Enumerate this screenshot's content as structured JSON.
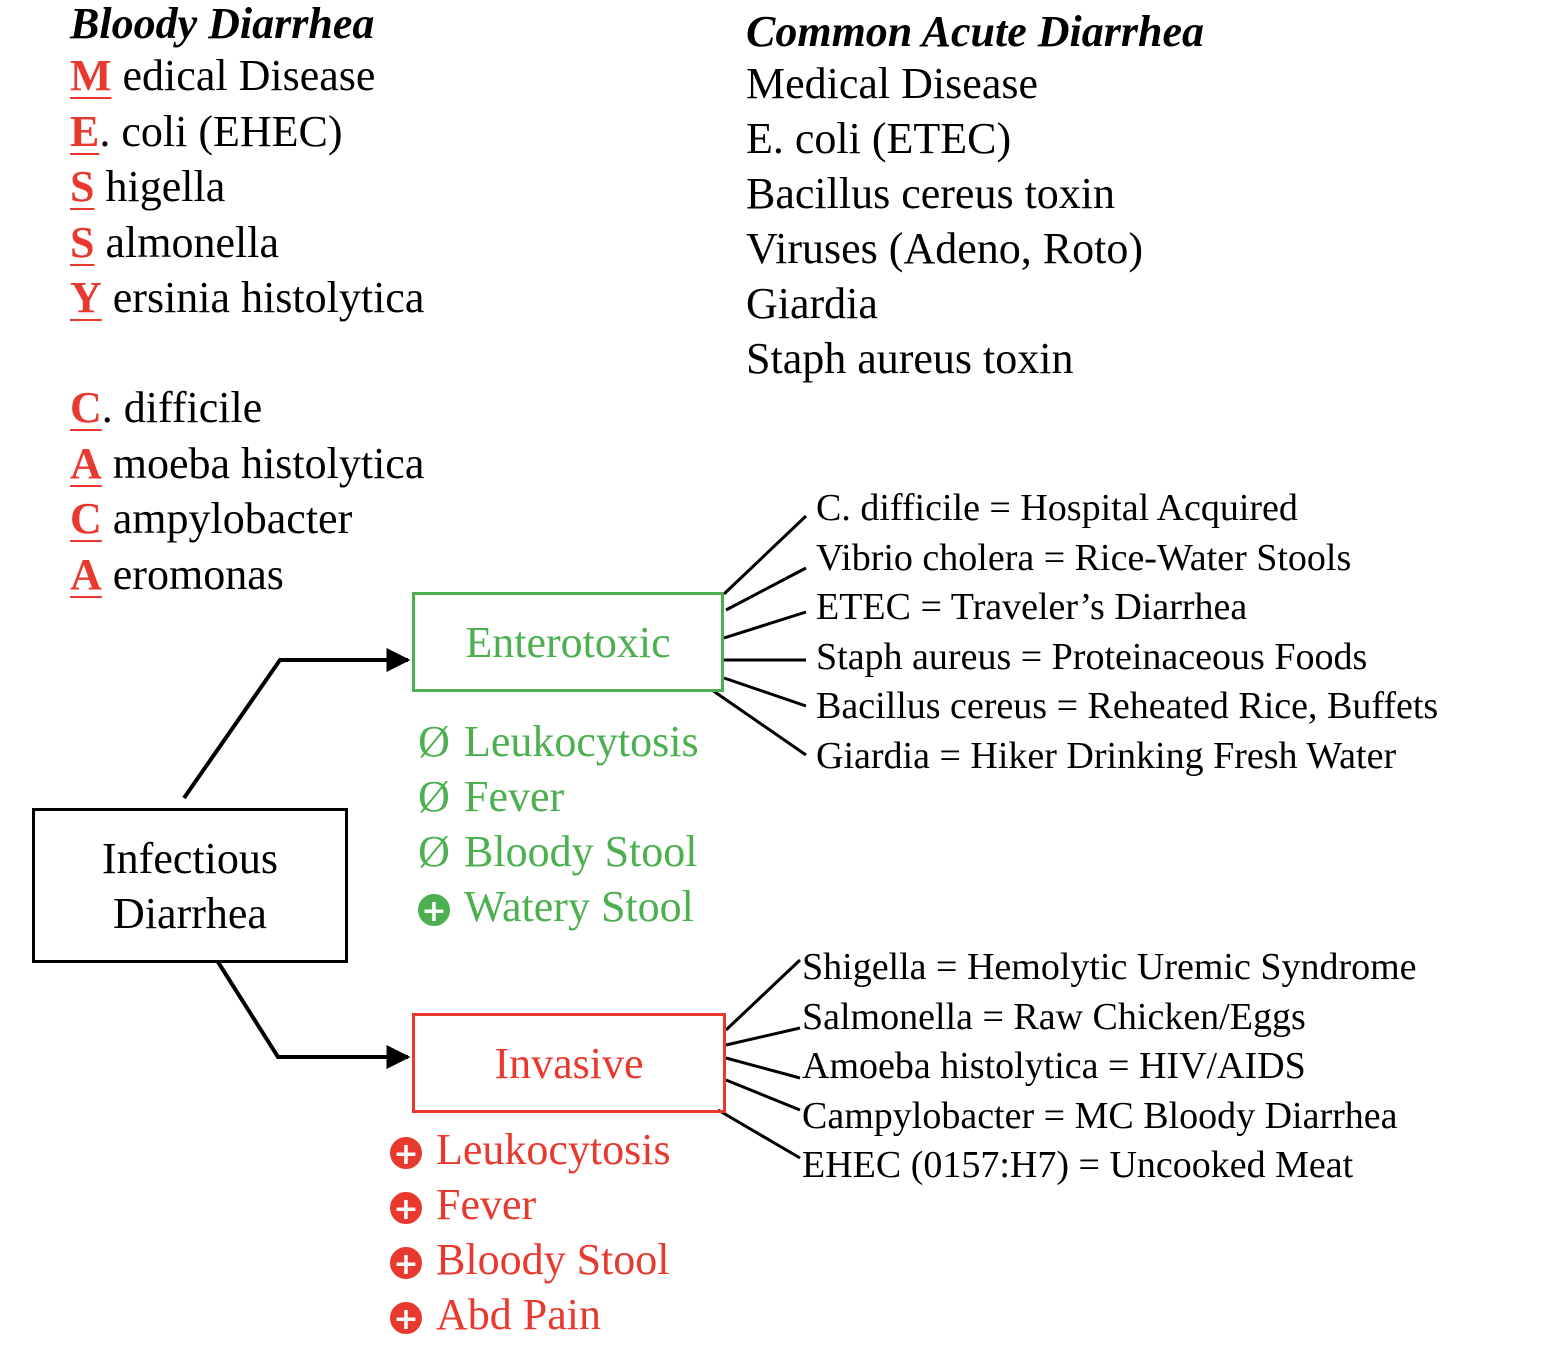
{
  "bloody": {
    "heading": "Bloody Diarrhea",
    "mnemonic_1": [
      {
        "letter": "M",
        "rest": " edical Disease"
      },
      {
        "letter": "E",
        "rest": ". coli (EHEC)"
      },
      {
        "letter": "S",
        "rest": " higella"
      },
      {
        "letter": "S",
        "rest": " almonella"
      },
      {
        "letter": "Y",
        "rest": " ersinia histolytica"
      }
    ],
    "mnemonic_2": [
      {
        "letter": "C",
        "rest": ". difficile"
      },
      {
        "letter": "A",
        "rest": " moeba histolytica"
      },
      {
        "letter": "C",
        "rest": " ampylobacter"
      },
      {
        "letter": "A",
        "rest": " eromonas"
      }
    ]
  },
  "common": {
    "heading": "Common Acute Diarrhea",
    "items": [
      "Medical Disease",
      "E. coli (ETEC)",
      "Bacillus cereus toxin",
      "Viruses (Adeno, Roto)",
      "Giardia",
      "Staph aureus toxin"
    ]
  },
  "root": {
    "line1": "Infectious",
    "line2": "Diarrhea"
  },
  "enterotoxic": {
    "label": "Enterotoxic",
    "color": "#4caf50",
    "features": [
      {
        "symbol": "Ø",
        "text": "Leukocytosis"
      },
      {
        "symbol": "Ø",
        "text": "Fever"
      },
      {
        "symbol": "Ø",
        "text": "Bloody Stool"
      },
      {
        "symbol": "plus-icon",
        "text": "Watery Stool"
      }
    ],
    "associations": [
      "C. difficile = Hospital Acquired",
      "Vibrio cholera = Rice-Water Stools",
      "ETEC = Traveler’s Diarrhea",
      "Staph aureus = Proteinaceous Foods",
      "Bacillus cereus = Reheated Rice, Buffets",
      "Giardia = Hiker Drinking Fresh Water"
    ]
  },
  "invasive": {
    "label": "Invasive",
    "color": "#e8392f",
    "features": [
      {
        "symbol": "plus-icon",
        "text": "Leukocytosis"
      },
      {
        "symbol": "plus-icon",
        "text": "Fever"
      },
      {
        "symbol": "plus-icon",
        "text": "Bloody Stool"
      },
      {
        "symbol": "plus-icon",
        "text": "Abd Pain"
      }
    ],
    "associations": [
      "Shigella = Hemolytic Uremic Syndrome",
      "Salmonella = Raw Chicken/Eggs",
      "Amoeba histolytica = HIV/AIDS",
      "Campylobacter = MC Bloody Diarrhea",
      "EHEC (0157:H7) = Uncooked Meat"
    ]
  }
}
